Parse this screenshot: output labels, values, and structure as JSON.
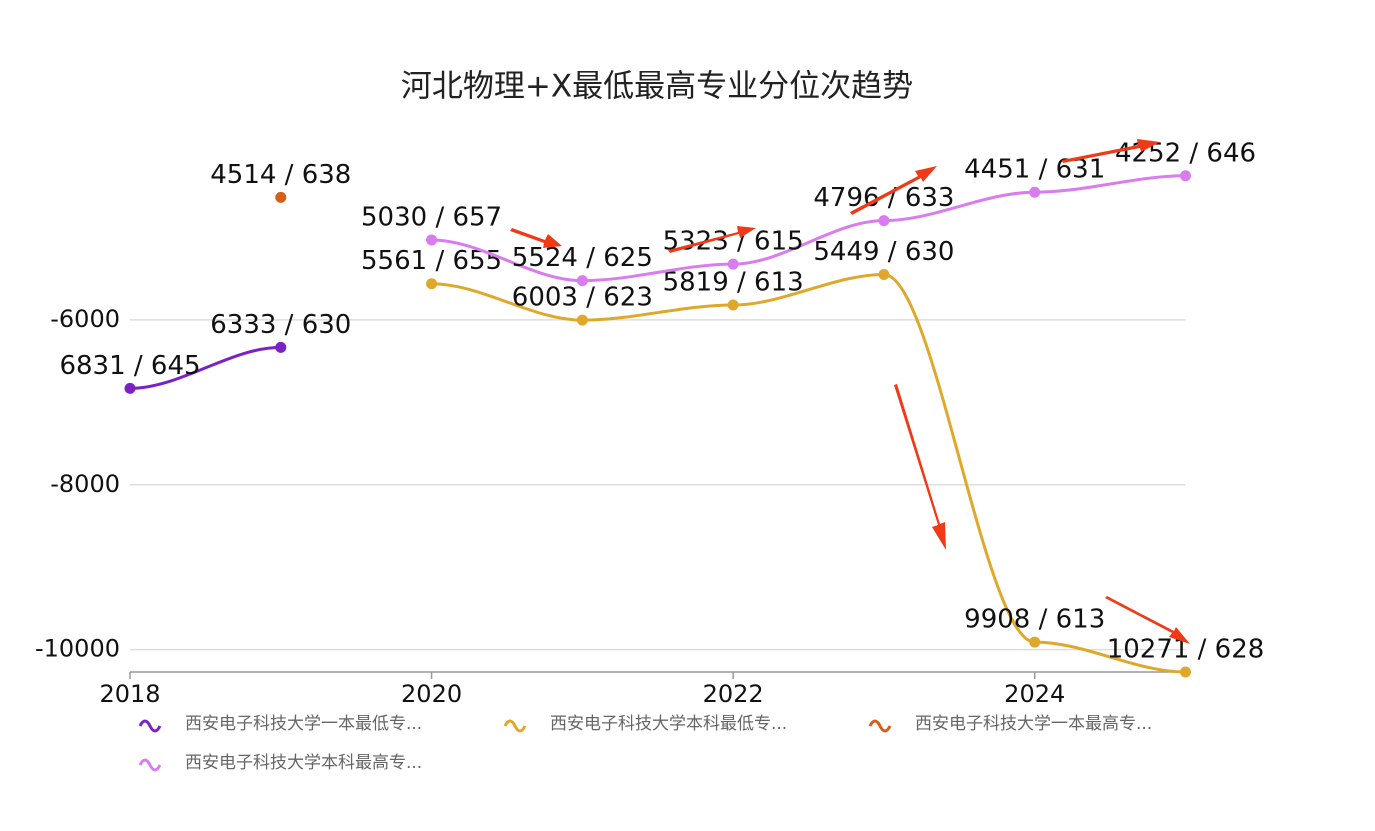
{
  "chart_data": {
    "type": "line",
    "title": "河北物理+X最低最高专业分位次趋势",
    "x": [
      2018,
      2019,
      2020,
      2021,
      2022,
      2023,
      2024,
      2025
    ],
    "xlim": [
      2018,
      2025
    ],
    "xticks": [
      2018,
      2020,
      2022,
      2024
    ],
    "ylim": [
      -10271,
      -4252
    ],
    "yticks": [
      -6000,
      -8000,
      -10000
    ],
    "grid": true,
    "legend": "bottom",
    "series": [
      {
        "name": "西安电子科技大学一本最低专...",
        "color": "#7b22c4",
        "values": [
          -6831,
          -6333,
          null,
          null,
          null,
          null,
          null,
          null
        ],
        "value_labels": [
          "6831 / 645",
          "6333 / 630",
          null,
          null,
          null,
          null,
          null,
          null
        ]
      },
      {
        "name": "西安电子科技大学本科最低专...",
        "color": "#e0a82a",
        "values": [
          null,
          null,
          -5561,
          -6003,
          -5819,
          -5449,
          -9908,
          -10271
        ],
        "value_labels": [
          null,
          null,
          "5561 / 655",
          "6003 / 623",
          "5819 / 613",
          "5449 / 630",
          "9908 / 613",
          "10271 / 628"
        ]
      },
      {
        "name": "西安电子科技大学一本最高专...",
        "color": "#d2601a",
        "values": [
          null,
          -4514,
          null,
          null,
          null,
          null,
          null,
          null
        ],
        "value_labels": [
          null,
          "4514 / 638",
          null,
          null,
          null,
          null,
          null,
          null
        ]
      },
      {
        "name": "西安电子科技大学本科最高专...",
        "color": "#d97cf0",
        "values": [
          null,
          null,
          -5030,
          -5524,
          -5323,
          -4796,
          -4451,
          -4252
        ],
        "value_labels": [
          null,
          null,
          "5030 / 657",
          "5524 / 625",
          "5323 / 615",
          "4796 / 633",
          "4451 / 631",
          "4252 / 646"
        ]
      }
    ]
  }
}
